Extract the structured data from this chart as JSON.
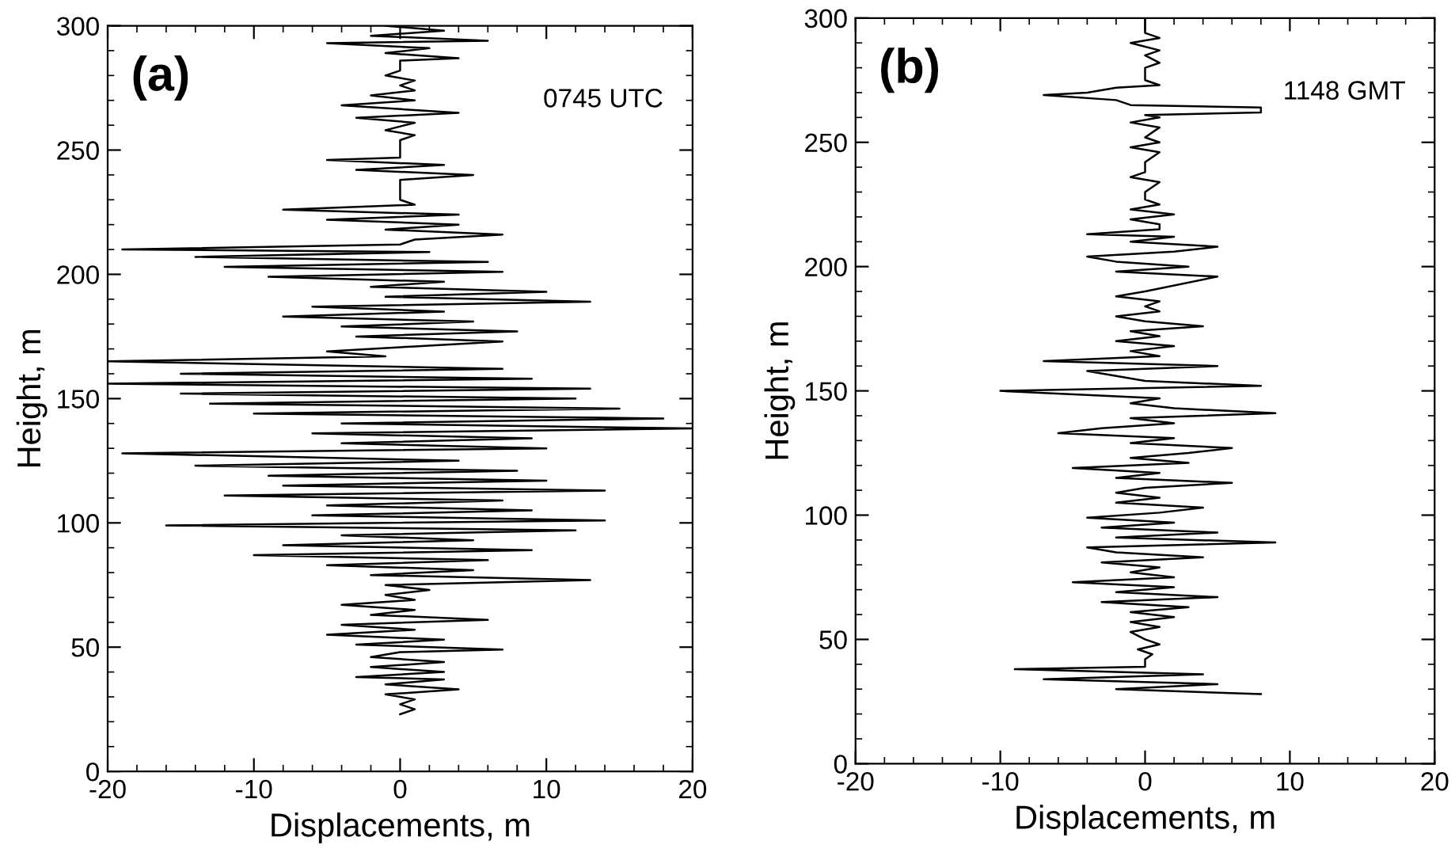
{
  "chart_data": [
    {
      "type": "line",
      "xlabel": "Displacements, m",
      "ylabel": "Height, m",
      "annotations": [
        "(a)",
        "0745 UTC"
      ],
      "xlim": [
        -20,
        20
      ],
      "xticks": [
        -20,
        -10,
        0,
        10,
        20
      ],
      "ylim": [
        0,
        300
      ],
      "yticks": [
        0,
        50,
        100,
        150,
        200,
        250,
        300
      ],
      "grid": false,
      "legend": false,
      "marker": "none",
      "line_style": "solid",
      "series": [
        {
          "color": "#000000",
          "x": [
            0,
            1,
            0,
            1,
            -1,
            4,
            -1,
            3,
            -3,
            3,
            -2,
            3,
            -2,
            0,
            7,
            -3,
            3,
            -5,
            1,
            -4,
            6,
            -2,
            1,
            -4,
            1,
            -1,
            2,
            -1,
            13,
            -2,
            5,
            -5,
            6,
            -10,
            9,
            -8,
            5,
            -4,
            12,
            -16,
            14,
            -6,
            9,
            -5,
            7,
            -12,
            14,
            -8,
            10,
            -9,
            8,
            -14,
            4,
            -19,
            10,
            -4,
            9,
            -6,
            20,
            -4,
            18,
            -10,
            15,
            -13,
            12,
            -15,
            13,
            -20,
            9,
            -15,
            7,
            -20,
            -1,
            -5,
            1,
            7,
            -3,
            8,
            -4,
            5,
            -8,
            3,
            -6,
            13,
            -1,
            10,
            -2,
            3,
            -9,
            7,
            -12,
            6,
            -14,
            2,
            -19,
            0,
            1,
            7,
            -1,
            4,
            -5,
            4,
            -8,
            1,
            0,
            0,
            0,
            5,
            -3,
            3,
            -5,
            0,
            0,
            1,
            -1,
            1,
            -3,
            4,
            -4,
            1,
            -2,
            1,
            0,
            1,
            -1,
            0,
            0,
            4,
            -1,
            2,
            -5,
            6,
            -2,
            3,
            -1
          ],
          "values": [
            23,
            25,
            27,
            29,
            31,
            33,
            35,
            37,
            38,
            40,
            42,
            44,
            46,
            48,
            49,
            51,
            53,
            55,
            57,
            59,
            61,
            63,
            65,
            67,
            69,
            71,
            73,
            75,
            77,
            79,
            81,
            83,
            85,
            87,
            89,
            91,
            93,
            95,
            97,
            99,
            101,
            103,
            105,
            107,
            109,
            111,
            113,
            115,
            117,
            119,
            121,
            123,
            125,
            128,
            130,
            132,
            134,
            136,
            138,
            140,
            142,
            144,
            146,
            148,
            150,
            152,
            154,
            156,
            158,
            160,
            162,
            165,
            167,
            169,
            171,
            173,
            175,
            177,
            179,
            181,
            183,
            185,
            187,
            189,
            191,
            193,
            195,
            197,
            199,
            201,
            203,
            205,
            207,
            209,
            210,
            212,
            214,
            216,
            218,
            220,
            222,
            224,
            226,
            228,
            230,
            232,
            238,
            240,
            242,
            244,
            246,
            247,
            254,
            256,
            258,
            261,
            263,
            265,
            268,
            270,
            272,
            274,
            276,
            278,
            280,
            282,
            286,
            287,
            289,
            291,
            293,
            294,
            296,
            298,
            300
          ]
        }
      ]
    },
    {
      "type": "line",
      "xlabel": "Displacements, m",
      "ylabel": "Height, m",
      "annotations": [
        "(b)",
        "1148 GMT"
      ],
      "xlim": [
        -20,
        20
      ],
      "xticks": [
        -20,
        -10,
        0,
        10,
        20
      ],
      "ylim": [
        0,
        300
      ],
      "yticks": [
        0,
        50,
        100,
        150,
        200,
        250,
        300
      ],
      "grid": false,
      "legend": false,
      "marker": "none",
      "line_style": "solid",
      "series": [
        {
          "color": "#000000",
          "x": [
            8,
            -2,
            5,
            -7,
            4,
            -9,
            0,
            0,
            0,
            0.5,
            -0.5,
            1,
            0,
            -1,
            1,
            -1,
            2,
            -1,
            3,
            -3,
            5,
            -2,
            2,
            -5,
            2,
            -1,
            1,
            -3,
            4,
            -2,
            -4,
            9,
            -2,
            5,
            -3,
            2,
            -4,
            1,
            4,
            -2,
            1,
            -2,
            0,
            6,
            -2,
            1,
            -5,
            3,
            -1,
            3,
            6,
            -1,
            2,
            -6,
            -3,
            2,
            -1,
            9,
            2,
            -1,
            1,
            -10,
            8,
            0,
            -2,
            -4,
            5,
            -7,
            1,
            -1,
            2,
            -2,
            1,
            -1,
            4,
            0,
            -2,
            1,
            0,
            1,
            -2,
            0,
            5,
            -2,
            3,
            -2,
            -4,
            2,
            5,
            -1,
            2,
            -4,
            1,
            1,
            -1,
            2,
            -1,
            1,
            0,
            0,
            1,
            -1,
            0,
            0,
            1,
            -1,
            1,
            0,
            1,
            -1,
            1,
            0,
            8,
            8,
            -1,
            -2,
            -7,
            -4,
            -2,
            1,
            0,
            0,
            1,
            0,
            1,
            -1,
            1,
            0,
            0
          ],
          "values": [
            28,
            30,
            32,
            34,
            36,
            38,
            39,
            40,
            42,
            44,
            46,
            48,
            50,
            53,
            55,
            57,
            59,
            61,
            63,
            65,
            67,
            69,
            71,
            73,
            75,
            77,
            79,
            81,
            83,
            85,
            87,
            89,
            91,
            93,
            95,
            97,
            99,
            101,
            103,
            105,
            107,
            109,
            111,
            113,
            115,
            117,
            119,
            121,
            123,
            125,
            127,
            129,
            131,
            133,
            135,
            137,
            139,
            141,
            143,
            145,
            147,
            150,
            152,
            154,
            156,
            158,
            160,
            162,
            164,
            166,
            168,
            170,
            172,
            174,
            176,
            178,
            180,
            182,
            184,
            186,
            188,
            190,
            196,
            198,
            200,
            202,
            204,
            206,
            208,
            210,
            212,
            213,
            215,
            217,
            219,
            221,
            223,
            225,
            227,
            230,
            234,
            236,
            238,
            242,
            246,
            248,
            250,
            252,
            256,
            258,
            260,
            261,
            262,
            264,
            265,
            267,
            269,
            270,
            272,
            273,
            275,
            280,
            282,
            285,
            287,
            290,
            292,
            294,
            300
          ]
        }
      ]
    }
  ]
}
